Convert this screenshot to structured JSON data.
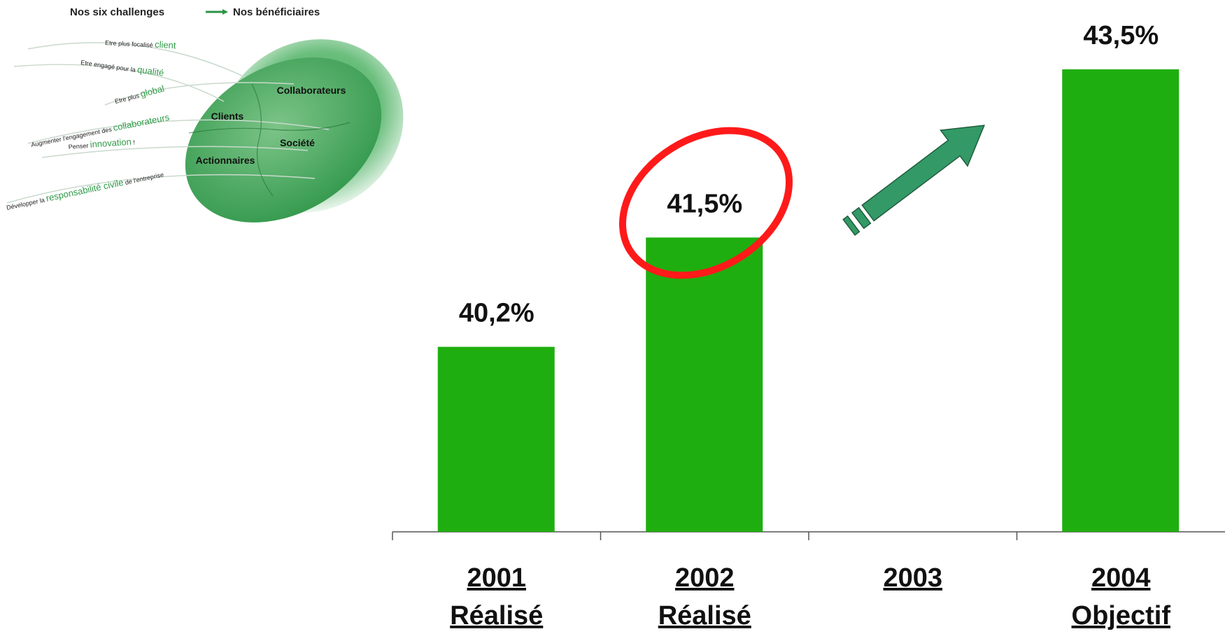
{
  "diagram": {
    "header_left": "Nos six challenges",
    "header_right": "Nos bénéficiaires",
    "challenges": [
      {
        "text": "Etre plus focalisé ",
        "keyword": "client"
      },
      {
        "text": "Etre engagé pour la ",
        "keyword": "qualité"
      },
      {
        "text": "Etre plus ",
        "keyword": "global"
      },
      {
        "text": "Augmenter l'engagement des ",
        "keyword": "collaborateurs"
      },
      {
        "text": "Penser ",
        "keyword": "innovation",
        "suffix": " !"
      },
      {
        "text": "Développer la ",
        "keyword": "responsabilité civile",
        "suffix": " de l'entreprise"
      }
    ],
    "beneficiaries": [
      "Collaborateurs",
      "Clients",
      "Société",
      "Actionnaires"
    ]
  },
  "chart_data": {
    "type": "bar",
    "categories": [
      "2001",
      "2002",
      "2003",
      "2004"
    ],
    "sublabels": [
      "Réalisé",
      "Réalisé",
      null,
      "Objectif"
    ],
    "values": [
      40.2,
      41.5,
      null,
      43.5
    ],
    "value_labels": [
      "40,2%",
      "41,5%",
      null,
      "43,5%"
    ],
    "color": "#1fae0f",
    "ylim": [
      38,
      44
    ]
  }
}
